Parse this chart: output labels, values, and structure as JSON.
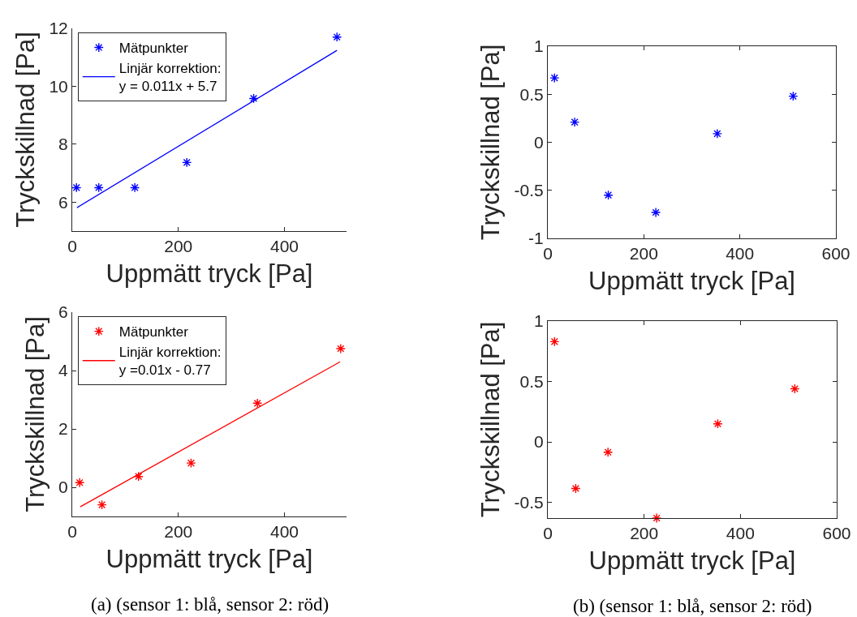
{
  "chart_data": [
    {
      "type": "scatter",
      "xlabel": "Uppmätt tryck [Pa]",
      "ylabel": "Tryckskillnad [Pa]",
      "xlim": [
        0,
        517
      ],
      "ylim": [
        5,
        12
      ],
      "xticks": [
        0,
        200,
        400
      ],
      "yticks": [
        6,
        8,
        10,
        12
      ],
      "legend": "top left",
      "series": [
        {
          "name": "Mätpunkter",
          "color": "#0000ff",
          "marker": "cross",
          "x": [
            8,
            50,
            118,
            216,
            342,
            499
          ],
          "values": [
            6.5,
            6.5,
            6.5,
            7.37,
            9.58,
            11.7
          ]
        },
        {
          "name": "Linjär korrektion:\ny = 0.011x + 5.7",
          "type": "line",
          "color": "#0000ff",
          "line_style": "solid",
          "x": [
            9,
            499
          ],
          "values": [
            5.81,
            11.24
          ]
        }
      ]
    },
    {
      "type": "scatter",
      "xlabel": "Uppmätt tryck [Pa]",
      "ylabel": "Tryckskillnad [Pa]",
      "xlim": [
        0,
        600
      ],
      "ylim": [
        -1,
        1
      ],
      "xticks": [
        0,
        200,
        400,
        600
      ],
      "yticks": [
        -1,
        -0.5,
        0,
        0.5,
        1
      ],
      "series": [
        {
          "color": "#0000ff",
          "marker": "cross",
          "x": [
            14,
            56,
            126,
            225,
            353,
            511
          ],
          "values": [
            0.67,
            0.21,
            -0.55,
            -0.73,
            0.09,
            0.48
          ]
        }
      ]
    },
    {
      "type": "scatter",
      "xlabel": "Uppmätt tryck [Pa]",
      "ylabel": "Tryckskillnad [Pa]",
      "xlim": [
        0,
        517
      ],
      "ylim": [
        -1,
        6
      ],
      "xticks": [
        0,
        200,
        400
      ],
      "yticks": [
        0,
        2,
        4,
        6
      ],
      "legend": "top left",
      "annotations": [
        "(a) (sensor 1: blå, sensor 2: röd)"
      ],
      "series": [
        {
          "name": "Mätpunkter",
          "color": "#ff0000",
          "marker": "cross",
          "x": [
            14,
            56,
            125,
            224,
            349,
            506
          ],
          "values": [
            0.16,
            -0.6,
            0.37,
            0.83,
            2.88,
            4.75
          ]
        },
        {
          "name": "Linjär korrektion:\ny =0.01x - 0.77",
          "type": "line",
          "color": "#ff0000",
          "line_style": "solid",
          "x": [
            15,
            505
          ],
          "values": [
            -0.67,
            4.3
          ]
        }
      ]
    },
    {
      "type": "scatter",
      "xlabel": "Uppmätt tryck [Pa]",
      "ylabel": "Tryckskillnad [Pa]",
      "xlim": [
        0,
        600
      ],
      "ylim": [
        -0.63,
        1
      ],
      "xticks": [
        0,
        200,
        400,
        600
      ],
      "yticks": [
        -0.5,
        0,
        0.5,
        1
      ],
      "annotations": [
        "(b) (sensor 1: blå, sensor 2: röd)"
      ],
      "series": [
        {
          "color": "#ff0000",
          "marker": "cross",
          "x": [
            14,
            58,
            125,
            226,
            353,
            513
          ],
          "values": [
            0.83,
            -0.385,
            -0.085,
            -0.63,
            0.15,
            0.44
          ]
        }
      ]
    }
  ]
}
